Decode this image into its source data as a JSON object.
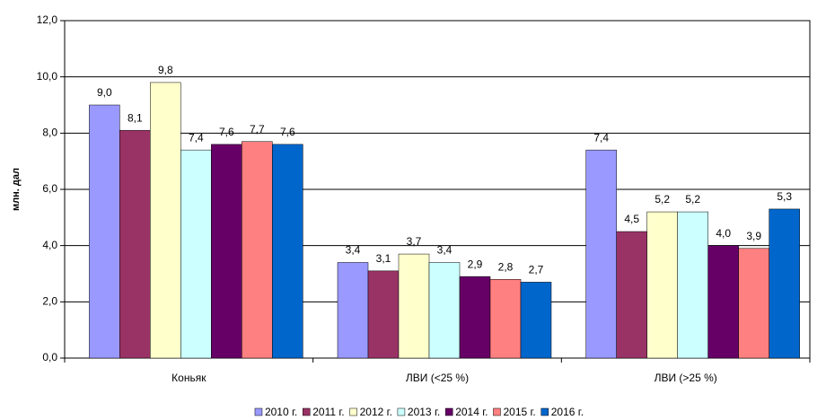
{
  "chart_data": {
    "type": "bar",
    "y_label": "млн. дал",
    "categories": [
      "Коньяк",
      "ЛВИ (<25 %)",
      "ЛВИ (>25 %)"
    ],
    "series": [
      {
        "name": "2010 г.",
        "color": "#9999ff",
        "values": [
          9.0,
          3.4,
          7.4
        ],
        "value_labels": [
          "9,0",
          "3,4",
          "7,4"
        ]
      },
      {
        "name": "2011 г.",
        "color": "#993366",
        "values": [
          8.1,
          3.1,
          4.5
        ],
        "value_labels": [
          "8,1",
          "3,1",
          "4,5"
        ]
      },
      {
        "name": "2012 г.",
        "color": "#ffffcc",
        "values": [
          9.8,
          3.7,
          5.2
        ],
        "value_labels": [
          "9,8",
          "3,7",
          "5,2"
        ]
      },
      {
        "name": "2013 г.",
        "color": "#ccffff",
        "values": [
          7.4,
          3.4,
          5.2
        ],
        "value_labels": [
          "7,4",
          "3,4",
          "5,2"
        ]
      },
      {
        "name": "2014 г.",
        "color": "#660066",
        "values": [
          7.6,
          2.9,
          4.0
        ],
        "value_labels": [
          "7,6",
          "2,9",
          "4,0"
        ]
      },
      {
        "name": "2015 г.",
        "color": "#ff8080",
        "values": [
          7.7,
          2.8,
          3.9
        ],
        "value_labels": [
          "7,7",
          "2,8",
          "3,9"
        ]
      },
      {
        "name": "2016 г.",
        "color": "#0066cc",
        "values": [
          7.6,
          2.7,
          5.3
        ],
        "value_labels": [
          "7,6",
          "2,7",
          "5,3"
        ]
      }
    ],
    "ylim": [
      0,
      12
    ],
    "yticks": [
      {
        "value": 0,
        "label": "0,0"
      },
      {
        "value": 2,
        "label": "2,0"
      },
      {
        "value": 4,
        "label": "4,0"
      },
      {
        "value": 6,
        "label": "6,0"
      },
      {
        "value": 8,
        "label": "8,0"
      },
      {
        "value": 10,
        "label": "10,0"
      },
      {
        "value": 12,
        "label": "12,0"
      }
    ],
    "grid": true
  }
}
